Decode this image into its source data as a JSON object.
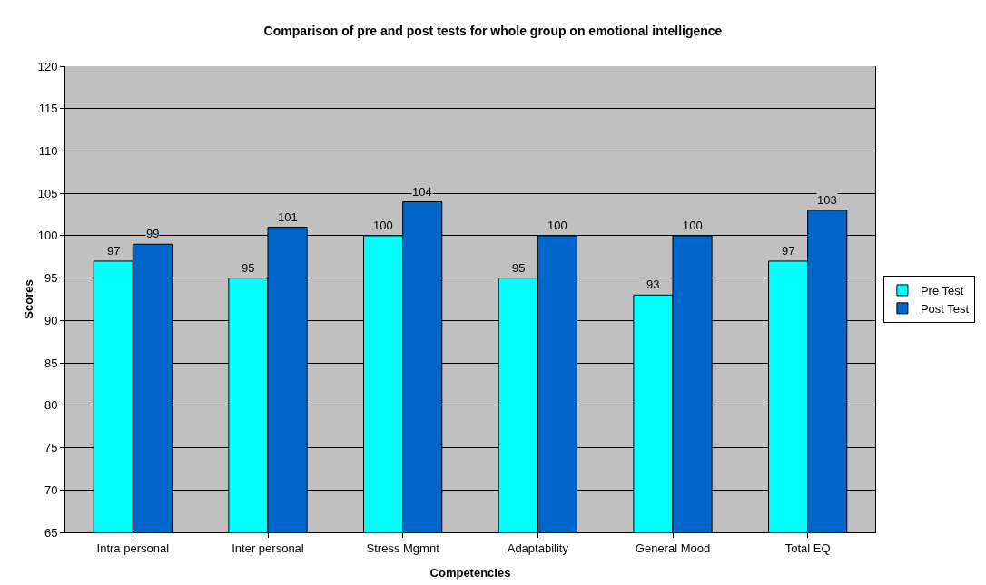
{
  "chart_data": {
    "type": "bar",
    "title": "Comparison of pre and post tests for whole group on emotional intelligence",
    "xlabel": "Competencies",
    "ylabel": "Scores",
    "categories": [
      "Intra personal",
      "Inter personal",
      "Stress Mgmnt",
      "Adaptability",
      "General Mood",
      "Total EQ"
    ],
    "series": [
      {
        "name": "Pre Test",
        "color": "#00ffff",
        "values": [
          97,
          95,
          100,
          95,
          93,
          97
        ]
      },
      {
        "name": "Post Test",
        "color": "#0066cc",
        "values": [
          99,
          101,
          104,
          100,
          100,
          103
        ]
      }
    ],
    "ylim": [
      65,
      120
    ],
    "yticks": [
      65,
      70,
      75,
      80,
      85,
      90,
      95,
      100,
      105,
      110,
      115,
      120
    ],
    "grid": "y",
    "legend": "right",
    "data_labels": true
  }
}
